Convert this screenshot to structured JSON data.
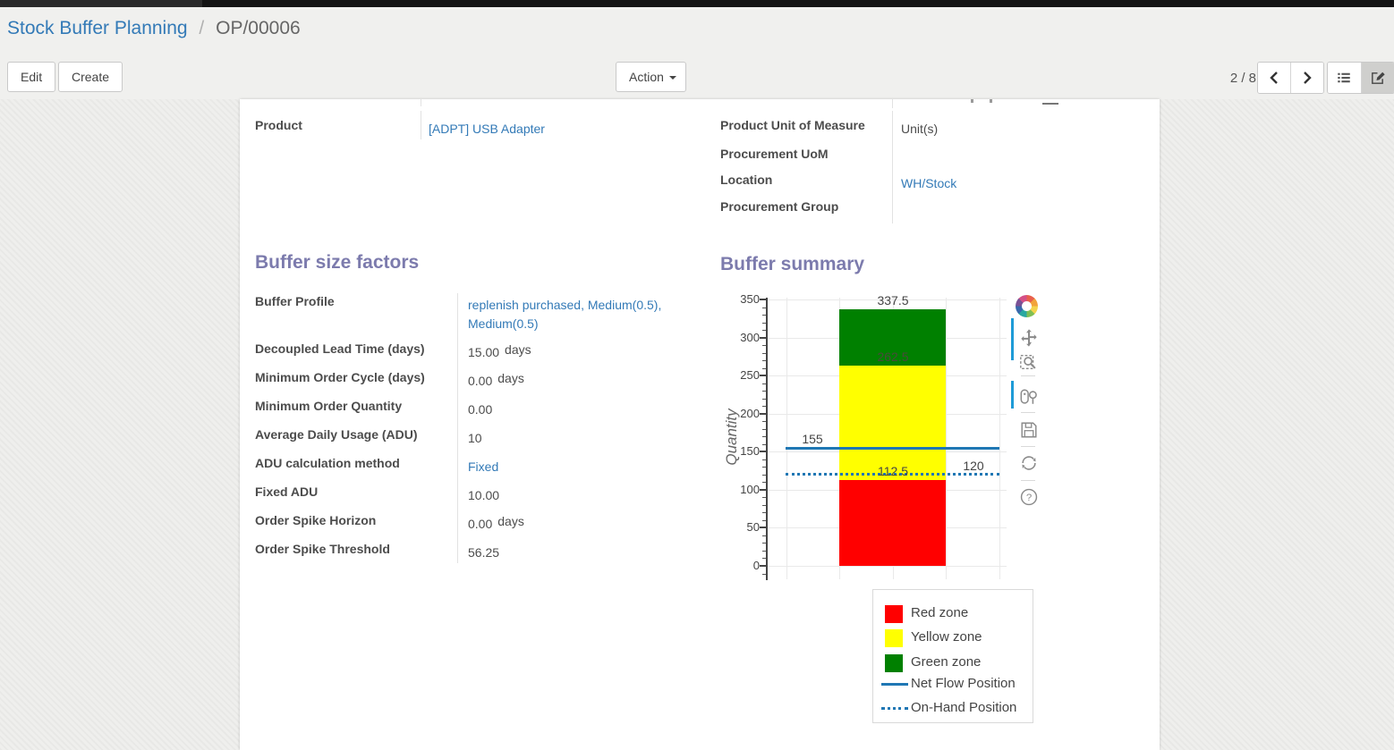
{
  "breadcrumb": {
    "parent": "Stock Buffer Planning",
    "separator": "/",
    "current": "OP/00006"
  },
  "controls": {
    "edit_label": "Edit",
    "create_label": "Create",
    "action_label": "Action",
    "pager": "2 / 8"
  },
  "icons": {
    "action_caret": "caret-down",
    "pager": [
      "prev-arrow",
      "next-arrow"
    ],
    "view_switcher": [
      "list-view",
      "form-view"
    ],
    "modebar": [
      "plotly-logo",
      "pan",
      "box-zoom",
      "scroll-zoom",
      "save",
      "reset-axes",
      "help"
    ]
  },
  "colors": {
    "heading": "#7c7bad",
    "link": "#337ab7",
    "red_zone": "#ff0000",
    "yellow_zone": "#ffff00",
    "green_zone": "#008000",
    "flow_line": "#1f77b4",
    "modebar_indicator": "#1e9bd7"
  },
  "form": {
    "product_group": {
      "left_fields": [
        {
          "label": "Product",
          "value": "[ADPT] USB Adapter",
          "link": true
        }
      ],
      "right_fields": [
        {
          "label": "Product Unit of Measure",
          "value": "Unit(s)",
          "link": false
        },
        {
          "label": "Procurement UoM",
          "value": "",
          "link": false
        },
        {
          "label": "Location",
          "value": "WH/Stock",
          "link": true
        },
        {
          "label": "Procurement Group",
          "value": "",
          "link": false
        }
      ]
    },
    "buffer_factors": {
      "title": "Buffer size factors",
      "fields": [
        {
          "label": "Buffer Profile",
          "value": "replenish purchased, Medium(0.5), Medium(0.5)",
          "link": true
        },
        {
          "label": "Decoupled Lead Time (days)",
          "value": "15.00",
          "suffix": "days"
        },
        {
          "label": "Minimum Order Cycle (days)",
          "value": "0.00",
          "suffix": "days"
        },
        {
          "label": "Minimum Order Quantity",
          "value": "0.00"
        },
        {
          "label": "Average Daily Usage (ADU)",
          "value": "10"
        },
        {
          "label": "ADU calculation method",
          "value": "Fixed",
          "link": true
        },
        {
          "label": "Fixed ADU",
          "value": "10.00"
        },
        {
          "label": "Order Spike Horizon",
          "value": "0.00",
          "suffix": "days"
        },
        {
          "label": "Order Spike Threshold",
          "value": "56.25"
        }
      ]
    },
    "buffer_summary": {
      "title": "Buffer summary"
    }
  },
  "chart_data": {
    "type": "bar",
    "title": "Buffer summary",
    "xlabel": "",
    "ylabel": "Quantity",
    "ylim": [
      0,
      350
    ],
    "ytick_step": 50,
    "ytick_labels": [
      "0",
      "50",
      "100",
      "150",
      "200",
      "250",
      "300",
      "350"
    ],
    "grid": true,
    "legend_position": "below-right",
    "zones": [
      {
        "name": "Red zone",
        "from": 0,
        "to": 112.5,
        "color": "#ff0000"
      },
      {
        "name": "Yellow zone",
        "from": 112.5,
        "to": 262.5,
        "color": "#ffff00"
      },
      {
        "name": "Green zone",
        "from": 262.5,
        "to": 337.5,
        "color": "#008000"
      }
    ],
    "lines": [
      {
        "name": "Net Flow Position",
        "value": 155,
        "style": "solid",
        "color": "#1f77b4"
      },
      {
        "name": "On-Hand Position",
        "value": 120,
        "style": "dotted",
        "color": "#1f77b4"
      }
    ],
    "annotations": [
      {
        "text": "337.5",
        "value": 337.5,
        "anchor": "bar",
        "color": "#444444"
      },
      {
        "text": "262.5",
        "value": 262.5,
        "anchor": "bar",
        "color": "#4a4a3a"
      },
      {
        "text": "155",
        "value": 155,
        "anchor": "left",
        "color": "#444444"
      },
      {
        "text": "112.5",
        "value": 112.5,
        "anchor": "bar",
        "color": "#444444"
      },
      {
        "text": "120",
        "value": 120,
        "anchor": "right",
        "color": "#444444"
      }
    ],
    "legend_items": [
      {
        "label": "Red zone",
        "type": "square",
        "color": "#ff0000"
      },
      {
        "label": "Yellow zone",
        "type": "square",
        "color": "#ffff00"
      },
      {
        "label": "Green zone",
        "type": "square",
        "color": "#008000"
      },
      {
        "label": "Net Flow Position",
        "type": "line",
        "color": "#1f77b4"
      },
      {
        "label": "On-Hand Position",
        "type": "dotted",
        "color": "#1f77b4"
      }
    ]
  }
}
